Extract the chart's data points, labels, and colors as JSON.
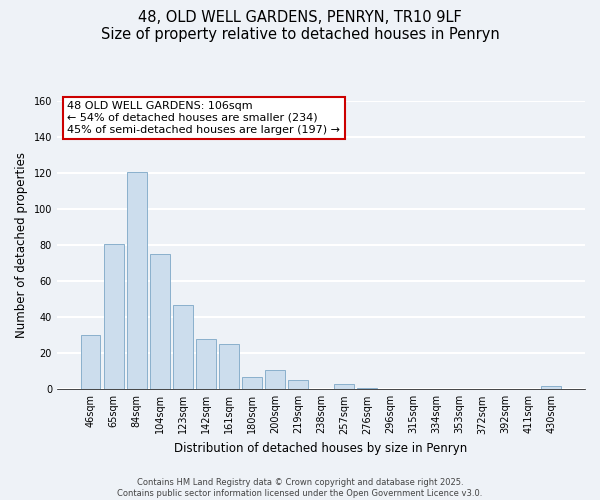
{
  "title": "48, OLD WELL GARDENS, PENRYN, TR10 9LF",
  "subtitle": "Size of property relative to detached houses in Penryn",
  "xlabel": "Distribution of detached houses by size in Penryn",
  "ylabel": "Number of detached properties",
  "categories": [
    "46sqm",
    "65sqm",
    "84sqm",
    "104sqm",
    "123sqm",
    "142sqm",
    "161sqm",
    "180sqm",
    "200sqm",
    "219sqm",
    "238sqm",
    "257sqm",
    "276sqm",
    "296sqm",
    "315sqm",
    "334sqm",
    "353sqm",
    "372sqm",
    "392sqm",
    "411sqm",
    "430sqm"
  ],
  "values": [
    30,
    81,
    121,
    75,
    47,
    28,
    25,
    7,
    11,
    5,
    0,
    3,
    1,
    0,
    0,
    0,
    0,
    0,
    0,
    0,
    2
  ],
  "bar_color": "#ccdded",
  "bar_edge_color": "#8ab0cc",
  "ylim": [
    0,
    160
  ],
  "yticks": [
    0,
    20,
    40,
    60,
    80,
    100,
    120,
    140,
    160
  ],
  "annotation_line1": "48 OLD WELL GARDENS: 106sqm",
  "annotation_line2": "← 54% of detached houses are smaller (234)",
  "annotation_line3": "45% of semi-detached houses are larger (197) →",
  "footer_line1": "Contains HM Land Registry data © Crown copyright and database right 2025.",
  "footer_line2": "Contains public sector information licensed under the Open Government Licence v3.0.",
  "bg_color": "#eef2f7",
  "grid_color": "#ffffff",
  "title_fontsize": 10.5,
  "axis_label_fontsize": 8.5,
  "tick_fontsize": 7,
  "annotation_fontsize": 8,
  "footer_fontsize": 6
}
